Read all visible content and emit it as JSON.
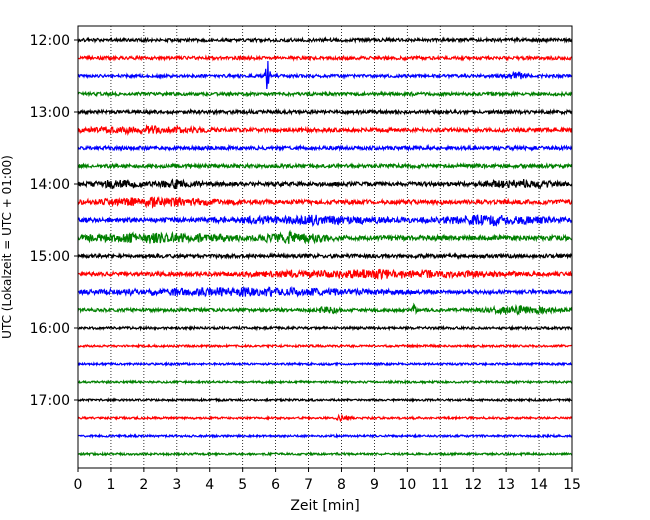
{
  "chart_data": {
    "type": "line",
    "title": "",
    "xlabel": "Zeit  [min]",
    "ylabel": "UTC (Lokalzeit = UTC + 01:00)",
    "xlim": [
      0,
      15
    ],
    "x_ticks": [
      "0",
      "1",
      "2",
      "3",
      "4",
      "5",
      "6",
      "7",
      "8",
      "9",
      "10",
      "11",
      "12",
      "13",
      "14",
      "15"
    ],
    "y_ticks": [
      "12:00",
      "13:00",
      "14:00",
      "15:00",
      "16:00",
      "17:00"
    ],
    "grid": "vertical-dotted",
    "trace_colors": [
      "#000000",
      "#ff0000",
      "#0000ff",
      "#008000"
    ],
    "traces": [
      {
        "start": "12:00",
        "color": "#000000"
      },
      {
        "start": "12:15",
        "color": "#ff0000"
      },
      {
        "start": "12:30",
        "color": "#0000ff"
      },
      {
        "start": "12:45",
        "color": "#008000"
      },
      {
        "start": "13:00",
        "color": "#000000"
      },
      {
        "start": "13:15",
        "color": "#ff0000"
      },
      {
        "start": "13:30",
        "color": "#0000ff"
      },
      {
        "start": "13:45",
        "color": "#008000"
      },
      {
        "start": "14:00",
        "color": "#000000"
      },
      {
        "start": "14:15",
        "color": "#ff0000"
      },
      {
        "start": "14:30",
        "color": "#0000ff"
      },
      {
        "start": "14:45",
        "color": "#008000"
      },
      {
        "start": "15:00",
        "color": "#000000"
      },
      {
        "start": "15:15",
        "color": "#ff0000"
      },
      {
        "start": "15:30",
        "color": "#0000ff"
      },
      {
        "start": "15:45",
        "color": "#008000"
      },
      {
        "start": "16:00",
        "color": "#000000"
      },
      {
        "start": "16:15",
        "color": "#ff0000"
      },
      {
        "start": "16:30",
        "color": "#0000ff"
      },
      {
        "start": "16:45",
        "color": "#008000"
      },
      {
        "start": "17:00",
        "color": "#000000"
      },
      {
        "start": "17:15",
        "color": "#ff0000"
      },
      {
        "start": "17:30",
        "color": "#0000ff"
      },
      {
        "start": "17:45",
        "color": "#008000"
      }
    ]
  }
}
